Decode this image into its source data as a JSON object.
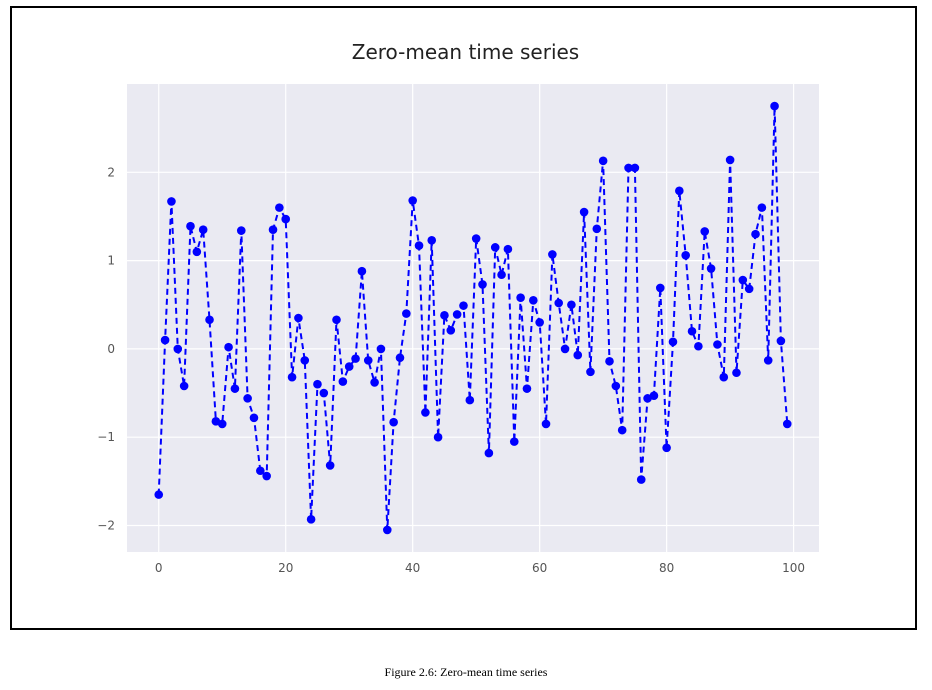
{
  "caption": "Figure 2.6: Zero-mean time series",
  "colors": {
    "plot_background": "#eaeaf2",
    "grid": "#ffffff",
    "series": "#0000ff"
  },
  "chart_data": {
    "type": "line",
    "title": "Zero-mean time series",
    "xlabel": "",
    "ylabel": "",
    "xlim": [
      -5,
      104
    ],
    "ylim": [
      -2.3,
      3.0
    ],
    "xticks": [
      0,
      20,
      40,
      60,
      80,
      100
    ],
    "xtick_labels": [
      "0",
      "20",
      "40",
      "60",
      "80",
      "100"
    ],
    "yticks": [
      -2,
      -1,
      0,
      1,
      2
    ],
    "ytick_labels": [
      "−2",
      "−1",
      "0",
      "1",
      "2"
    ],
    "grid": true,
    "line_style": "dashed",
    "marker": "circle",
    "series": [
      {
        "x": [
          0,
          1,
          2,
          3,
          4,
          5,
          6,
          7,
          8,
          9,
          10,
          11,
          12,
          13,
          14,
          15,
          16,
          17,
          18,
          19,
          20,
          21,
          22,
          23,
          24,
          25,
          26,
          27,
          28,
          29,
          30,
          31,
          32,
          33,
          34,
          35,
          36,
          37,
          38,
          39,
          40,
          41,
          42,
          43,
          44,
          45,
          46,
          47,
          48,
          49,
          50,
          51,
          52,
          53,
          54,
          55,
          56,
          57,
          58,
          59,
          60,
          61,
          62,
          63,
          64,
          65,
          66,
          67,
          68,
          69,
          70,
          71,
          72,
          73,
          74,
          75,
          76,
          77,
          78,
          79,
          80,
          81,
          82,
          83,
          84,
          85,
          86,
          87,
          88,
          89,
          90,
          91,
          92,
          93,
          94,
          95,
          96,
          97,
          98,
          99
        ],
        "values": [
          -1.65,
          0.1,
          1.67,
          0.0,
          -0.42,
          1.39,
          1.1,
          1.35,
          0.33,
          -0.82,
          -0.85,
          0.02,
          -0.45,
          1.34,
          -0.56,
          -0.78,
          -1.38,
          -1.44,
          1.35,
          1.6,
          1.47,
          -0.32,
          0.35,
          -0.13,
          -1.93,
          -0.4,
          -0.5,
          -1.32,
          0.33,
          -0.37,
          -0.2,
          -0.11,
          0.88,
          -0.13,
          -0.38,
          0.0,
          -2.05,
          -0.83,
          -0.1,
          0.4,
          1.68,
          1.17,
          -0.72,
          1.23,
          -1.0,
          0.38,
          0.21,
          0.39,
          0.49,
          -0.58,
          1.25,
          0.73,
          -1.18,
          1.15,
          0.84,
          1.13,
          -1.05,
          0.58,
          -0.45,
          0.55,
          0.3,
          -0.85,
          1.07,
          0.52,
          0.0,
          0.5,
          -0.07,
          1.55,
          -0.26,
          1.36,
          2.13,
          -0.14,
          -0.42,
          -0.92,
          2.05,
          2.05,
          -1.48,
          -0.56,
          -0.53,
          0.69,
          -1.12,
          0.08,
          1.79,
          1.06,
          0.2,
          0.03,
          1.33,
          0.91,
          0.05,
          -0.32,
          2.14,
          -0.27,
          0.78,
          0.68,
          1.3,
          1.6,
          -0.13,
          2.75,
          0.09,
          -0.85
        ]
      }
    ]
  }
}
